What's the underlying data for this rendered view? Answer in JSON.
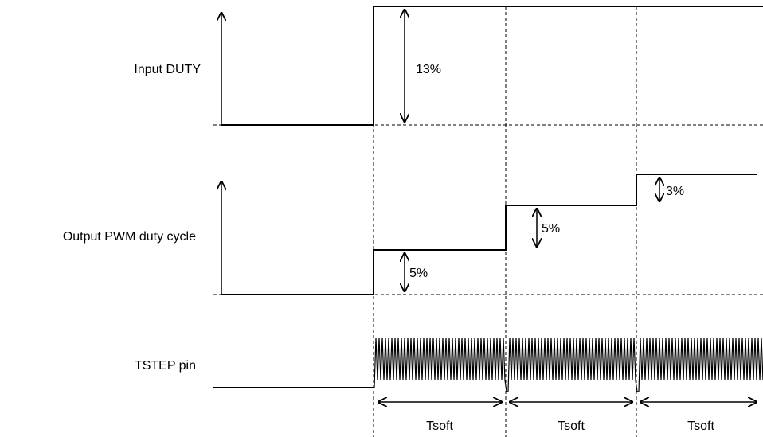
{
  "signals": [
    {
      "label": "Input DUTY",
      "steps": [
        "13%"
      ]
    },
    {
      "label": "Output PWM duty cycle",
      "steps": [
        "5%",
        "5%",
        "3%"
      ]
    },
    {
      "label": "TSTEP pin"
    }
  ],
  "intervals": [
    "Tsoft",
    "Tsoft",
    "Tsoft"
  ]
}
